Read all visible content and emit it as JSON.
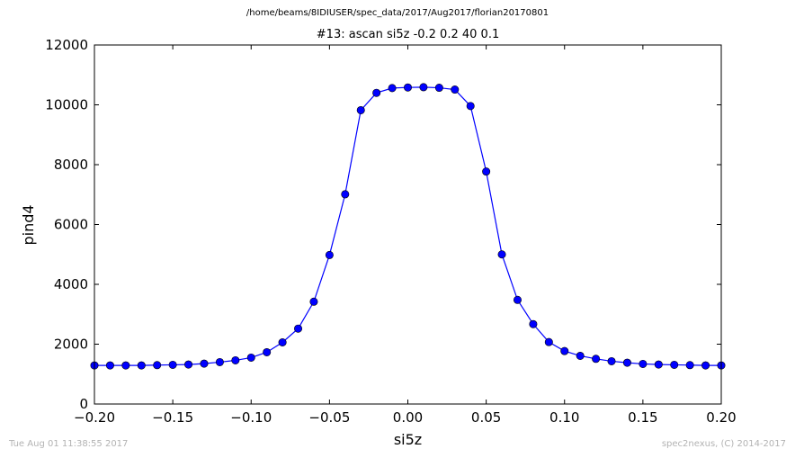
{
  "header": {
    "suptitle": "/home/beams/8IDIUSER/spec_data/2017/Aug2017/florian20170801",
    "title": "#13: ascan  si5z -0.2 0.2  40 0.1"
  },
  "footer": {
    "timestamp": "Tue Aug 01 11:38:55 2017",
    "credit": "spec2nexus, (C) 2014-2017"
  },
  "chart_data": {
    "type": "line",
    "title": "#13: ascan  si5z -0.2 0.2  40 0.1",
    "xlabel": "si5z",
    "ylabel": "pind4",
    "xlim": [
      -0.2,
      0.2
    ],
    "ylim": [
      0,
      12000
    ],
    "xticks": [
      -0.2,
      -0.15,
      -0.1,
      -0.05,
      0.0,
      0.05,
      0.1,
      0.15,
      0.2
    ],
    "xtick_labels": [
      "−0.20",
      "−0.15",
      "−0.10",
      "−0.05",
      "0.00",
      "0.05",
      "0.10",
      "0.15",
      "0.20"
    ],
    "yticks": [
      0,
      2000,
      4000,
      6000,
      8000,
      10000,
      12000
    ],
    "ytick_labels": [
      "0",
      "2000",
      "4000",
      "6000",
      "8000",
      "10000",
      "12000"
    ],
    "grid": false,
    "marker": "circle",
    "color": "#0000ff",
    "x": [
      -0.2,
      -0.19,
      -0.18,
      -0.17,
      -0.16,
      -0.15,
      -0.14,
      -0.13,
      -0.12,
      -0.11,
      -0.1,
      -0.09,
      -0.08,
      -0.07,
      -0.06,
      -0.05,
      -0.04,
      -0.03,
      -0.02,
      -0.01,
      0.0,
      0.01,
      0.02,
      0.03,
      0.04,
      0.05,
      0.06,
      0.07,
      0.08,
      0.09,
      0.1,
      0.11,
      0.12,
      0.13,
      0.14,
      0.15,
      0.16,
      0.17,
      0.18,
      0.19,
      0.2
    ],
    "y": [
      1290,
      1290,
      1290,
      1290,
      1300,
      1310,
      1320,
      1350,
      1400,
      1460,
      1550,
      1730,
      2060,
      2520,
      3420,
      4980,
      7010,
      9820,
      10400,
      10560,
      10580,
      10590,
      10570,
      10510,
      9960,
      7770,
      5000,
      3480,
      2670,
      2070,
      1770,
      1610,
      1510,
      1430,
      1380,
      1340,
      1320,
      1310,
      1300,
      1290,
      1290
    ]
  }
}
